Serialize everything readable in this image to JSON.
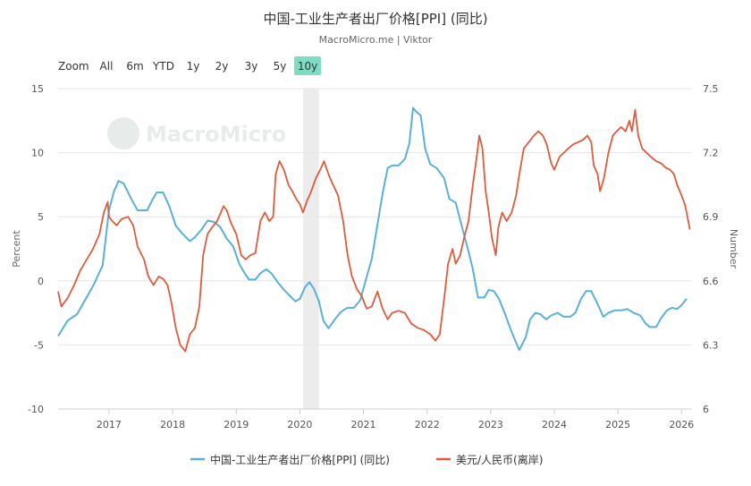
{
  "header": {
    "title": "中国-工业生产者出厂价格[PPI] (同比)",
    "subtitle": "MacroMicro.me | Viktor"
  },
  "toolbar": {
    "zoom_label": "Zoom",
    "buttons": [
      "All",
      "6m",
      "YTD",
      "1y",
      "2y",
      "3y",
      "5y",
      "10y"
    ],
    "active": "10y",
    "active_color": "#7ddcc3"
  },
  "watermark": {
    "text": "MacroMicro"
  },
  "chart_data": {
    "type": "line",
    "x_ticks": [
      "2017",
      "2018",
      "2019",
      "2020",
      "2021",
      "2022",
      "2023",
      "2024",
      "2025",
      "2026"
    ],
    "xlim": [
      2016.2,
      2026.15
    ],
    "y_left": {
      "label": "Percent",
      "ticks": [
        15,
        10,
        5,
        0,
        -5,
        -10
      ],
      "range": [
        -10,
        15
      ]
    },
    "y_right": {
      "label": "Number",
      "ticks": [
        7.5,
        7.2,
        6.9,
        6.6,
        6.3,
        6
      ],
      "tick_labels": [
        "7.5",
        "7.2",
        "6.9",
        "6.6",
        "6.3",
        "6"
      ],
      "range": [
        6,
        7.5
      ]
    },
    "shaded_region": [
      2020.05,
      2020.3
    ],
    "series": [
      {
        "name": "中国-工业生产者出厂价格[PPI] (同比)",
        "axis": "left",
        "color": "#5ab0d8",
        "points": [
          [
            2016.2,
            -4.3
          ],
          [
            2016.35,
            -3.1
          ],
          [
            2016.5,
            -2.6
          ],
          [
            2016.6,
            -1.7
          ],
          [
            2016.75,
            -0.4
          ],
          [
            2016.9,
            1.2
          ],
          [
            2017.0,
            5.5
          ],
          [
            2017.08,
            7.0
          ],
          [
            2017.15,
            7.8
          ],
          [
            2017.23,
            7.6
          ],
          [
            2017.35,
            6.4
          ],
          [
            2017.45,
            5.5
          ],
          [
            2017.6,
            5.5
          ],
          [
            2017.68,
            6.3
          ],
          [
            2017.75,
            6.9
          ],
          [
            2017.85,
            6.9
          ],
          [
            2017.95,
            5.8
          ],
          [
            2018.05,
            4.3
          ],
          [
            2018.15,
            3.7
          ],
          [
            2018.27,
            3.1
          ],
          [
            2018.35,
            3.4
          ],
          [
            2018.47,
            4.1
          ],
          [
            2018.55,
            4.7
          ],
          [
            2018.65,
            4.6
          ],
          [
            2018.75,
            4.2
          ],
          [
            2018.85,
            3.3
          ],
          [
            2018.95,
            2.7
          ],
          [
            2019.05,
            1.3
          ],
          [
            2019.12,
            0.7
          ],
          [
            2019.2,
            0.1
          ],
          [
            2019.3,
            0.1
          ],
          [
            2019.38,
            0.6
          ],
          [
            2019.47,
            0.9
          ],
          [
            2019.55,
            0.6
          ],
          [
            2019.65,
            -0.1
          ],
          [
            2019.75,
            -0.7
          ],
          [
            2019.85,
            -1.2
          ],
          [
            2019.93,
            -1.6
          ],
          [
            2020.0,
            -1.4
          ],
          [
            2020.08,
            -0.5
          ],
          [
            2020.15,
            -0.1
          ],
          [
            2020.22,
            -0.6
          ],
          [
            2020.3,
            -1.6
          ],
          [
            2020.37,
            -3.1
          ],
          [
            2020.45,
            -3.7
          ],
          [
            2020.55,
            -3.0
          ],
          [
            2020.65,
            -2.4
          ],
          [
            2020.75,
            -2.1
          ],
          [
            2020.85,
            -2.1
          ],
          [
            2020.95,
            -1.5
          ],
          [
            2021.05,
            0.3
          ],
          [
            2021.13,
            1.7
          ],
          [
            2021.22,
            4.4
          ],
          [
            2021.3,
            6.8
          ],
          [
            2021.38,
            8.8
          ],
          [
            2021.45,
            9.0
          ],
          [
            2021.55,
            9.0
          ],
          [
            2021.65,
            9.5
          ],
          [
            2021.72,
            10.7
          ],
          [
            2021.78,
            13.5
          ],
          [
            2021.83,
            13.2
          ],
          [
            2021.9,
            12.9
          ],
          [
            2021.97,
            10.3
          ],
          [
            2022.05,
            9.1
          ],
          [
            2022.15,
            8.8
          ],
          [
            2022.27,
            8.0
          ],
          [
            2022.35,
            6.4
          ],
          [
            2022.45,
            6.1
          ],
          [
            2022.55,
            4.2
          ],
          [
            2022.65,
            2.3
          ],
          [
            2022.72,
            0.9
          ],
          [
            2022.8,
            -1.3
          ],
          [
            2022.9,
            -1.3
          ],
          [
            2022.97,
            -0.7
          ],
          [
            2023.05,
            -0.8
          ],
          [
            2023.13,
            -1.4
          ],
          [
            2023.22,
            -2.5
          ],
          [
            2023.3,
            -3.6
          ],
          [
            2023.38,
            -4.6
          ],
          [
            2023.45,
            -5.4
          ],
          [
            2023.55,
            -4.4
          ],
          [
            2023.62,
            -3.0
          ],
          [
            2023.7,
            -2.5
          ],
          [
            2023.78,
            -2.6
          ],
          [
            2023.87,
            -3.0
          ],
          [
            2023.95,
            -2.7
          ],
          [
            2024.05,
            -2.5
          ],
          [
            2024.15,
            -2.8
          ],
          [
            2024.25,
            -2.8
          ],
          [
            2024.33,
            -2.5
          ],
          [
            2024.42,
            -1.4
          ],
          [
            2024.5,
            -0.8
          ],
          [
            2024.58,
            -0.8
          ],
          [
            2024.68,
            -1.8
          ],
          [
            2024.77,
            -2.8
          ],
          [
            2024.85,
            -2.5
          ],
          [
            2024.95,
            -2.3
          ],
          [
            2025.05,
            -2.3
          ],
          [
            2025.15,
            -2.2
          ],
          [
            2025.25,
            -2.5
          ],
          [
            2025.35,
            -2.7
          ],
          [
            2025.43,
            -3.3
          ],
          [
            2025.5,
            -3.6
          ],
          [
            2025.6,
            -3.6
          ],
          [
            2025.68,
            -2.9
          ],
          [
            2025.77,
            -2.3
          ],
          [
            2025.85,
            -2.1
          ],
          [
            2025.93,
            -2.2
          ],
          [
            2026.0,
            -1.9
          ],
          [
            2026.08,
            -1.4
          ]
        ]
      },
      {
        "name": "美元/人民币(离岸)",
        "axis": "right",
        "color": "#de5b3c",
        "points": [
          [
            2016.2,
            6.55
          ],
          [
            2016.25,
            6.48
          ],
          [
            2016.35,
            6.52
          ],
          [
            2016.45,
            6.58
          ],
          [
            2016.55,
            6.65
          ],
          [
            2016.65,
            6.7
          ],
          [
            2016.75,
            6.75
          ],
          [
            2016.85,
            6.82
          ],
          [
            2016.92,
            6.92
          ],
          [
            2016.98,
            6.97
          ],
          [
            2017.0,
            6.9
          ],
          [
            2017.05,
            6.88
          ],
          [
            2017.12,
            6.86
          ],
          [
            2017.2,
            6.89
          ],
          [
            2017.3,
            6.9
          ],
          [
            2017.38,
            6.86
          ],
          [
            2017.45,
            6.76
          ],
          [
            2017.55,
            6.7
          ],
          [
            2017.62,
            6.62
          ],
          [
            2017.7,
            6.58
          ],
          [
            2017.78,
            6.62
          ],
          [
            2017.85,
            6.61
          ],
          [
            2017.92,
            6.58
          ],
          [
            2017.98,
            6.5
          ],
          [
            2018.05,
            6.38
          ],
          [
            2018.12,
            6.3
          ],
          [
            2018.2,
            6.27
          ],
          [
            2018.27,
            6.35
          ],
          [
            2018.35,
            6.38
          ],
          [
            2018.42,
            6.48
          ],
          [
            2018.48,
            6.72
          ],
          [
            2018.55,
            6.82
          ],
          [
            2018.62,
            6.85
          ],
          [
            2018.7,
            6.88
          ],
          [
            2018.8,
            6.95
          ],
          [
            2018.85,
            6.93
          ],
          [
            2018.92,
            6.87
          ],
          [
            2019.0,
            6.82
          ],
          [
            2019.08,
            6.72
          ],
          [
            2019.15,
            6.7
          ],
          [
            2019.22,
            6.72
          ],
          [
            2019.3,
            6.73
          ],
          [
            2019.38,
            6.88
          ],
          [
            2019.45,
            6.92
          ],
          [
            2019.52,
            6.88
          ],
          [
            2019.58,
            6.9
          ],
          [
            2019.62,
            7.1
          ],
          [
            2019.68,
            7.16
          ],
          [
            2019.75,
            7.12
          ],
          [
            2019.82,
            7.05
          ],
          [
            2019.88,
            7.02
          ],
          [
            2019.95,
            6.98
          ],
          [
            2020.0,
            6.96
          ],
          [
            2020.05,
            6.92
          ],
          [
            2020.12,
            6.98
          ],
          [
            2020.18,
            7.02
          ],
          [
            2020.25,
            7.08
          ],
          [
            2020.32,
            7.12
          ],
          [
            2020.38,
            7.16
          ],
          [
            2020.45,
            7.1
          ],
          [
            2020.52,
            7.05
          ],
          [
            2020.6,
            7.0
          ],
          [
            2020.68,
            6.88
          ],
          [
            2020.75,
            6.72
          ],
          [
            2020.82,
            6.62
          ],
          [
            2020.9,
            6.56
          ],
          [
            2020.97,
            6.53
          ],
          [
            2021.05,
            6.47
          ],
          [
            2021.13,
            6.48
          ],
          [
            2021.22,
            6.55
          ],
          [
            2021.3,
            6.47
          ],
          [
            2021.38,
            6.42
          ],
          [
            2021.45,
            6.45
          ],
          [
            2021.55,
            6.46
          ],
          [
            2021.65,
            6.45
          ],
          [
            2021.75,
            6.4
          ],
          [
            2021.85,
            6.38
          ],
          [
            2021.95,
            6.37
          ],
          [
            2022.05,
            6.35
          ],
          [
            2022.13,
            6.32
          ],
          [
            2022.2,
            6.35
          ],
          [
            2022.27,
            6.52
          ],
          [
            2022.33,
            6.68
          ],
          [
            2022.4,
            6.75
          ],
          [
            2022.45,
            6.68
          ],
          [
            2022.52,
            6.72
          ],
          [
            2022.58,
            6.8
          ],
          [
            2022.65,
            6.88
          ],
          [
            2022.72,
            7.05
          ],
          [
            2022.78,
            7.18
          ],
          [
            2022.82,
            7.28
          ],
          [
            2022.87,
            7.22
          ],
          [
            2022.92,
            7.02
          ],
          [
            2022.97,
            6.92
          ],
          [
            2023.02,
            6.8
          ],
          [
            2023.08,
            6.72
          ],
          [
            2023.12,
            6.85
          ],
          [
            2023.18,
            6.92
          ],
          [
            2023.25,
            6.88
          ],
          [
            2023.33,
            6.92
          ],
          [
            2023.4,
            7.0
          ],
          [
            2023.45,
            7.1
          ],
          [
            2023.52,
            7.22
          ],
          [
            2023.6,
            7.25
          ],
          [
            2023.68,
            7.28
          ],
          [
            2023.75,
            7.3
          ],
          [
            2023.82,
            7.28
          ],
          [
            2023.88,
            7.24
          ],
          [
            2023.95,
            7.15
          ],
          [
            2024.0,
            7.12
          ],
          [
            2024.08,
            7.18
          ],
          [
            2024.15,
            7.2
          ],
          [
            2024.22,
            7.22
          ],
          [
            2024.3,
            7.24
          ],
          [
            2024.38,
            7.25
          ],
          [
            2024.45,
            7.26
          ],
          [
            2024.52,
            7.28
          ],
          [
            2024.58,
            7.25
          ],
          [
            2024.62,
            7.14
          ],
          [
            2024.68,
            7.1
          ],
          [
            2024.72,
            7.02
          ],
          [
            2024.78,
            7.08
          ],
          [
            2024.85,
            7.2
          ],
          [
            2024.92,
            7.28
          ],
          [
            2024.98,
            7.3
          ],
          [
            2025.05,
            7.32
          ],
          [
            2025.12,
            7.3
          ],
          [
            2025.18,
            7.35
          ],
          [
            2025.22,
            7.3
          ],
          [
            2025.27,
            7.4
          ],
          [
            2025.32,
            7.28
          ],
          [
            2025.38,
            7.22
          ],
          [
            2025.45,
            7.2
          ],
          [
            2025.52,
            7.18
          ],
          [
            2025.6,
            7.16
          ],
          [
            2025.68,
            7.15
          ],
          [
            2025.75,
            7.13
          ],
          [
            2025.82,
            7.12
          ],
          [
            2025.88,
            7.1
          ],
          [
            2025.93,
            7.05
          ],
          [
            2026.0,
            7.0
          ],
          [
            2026.05,
            6.96
          ],
          [
            2026.08,
            6.92
          ],
          [
            2026.13,
            6.84
          ]
        ]
      }
    ]
  }
}
